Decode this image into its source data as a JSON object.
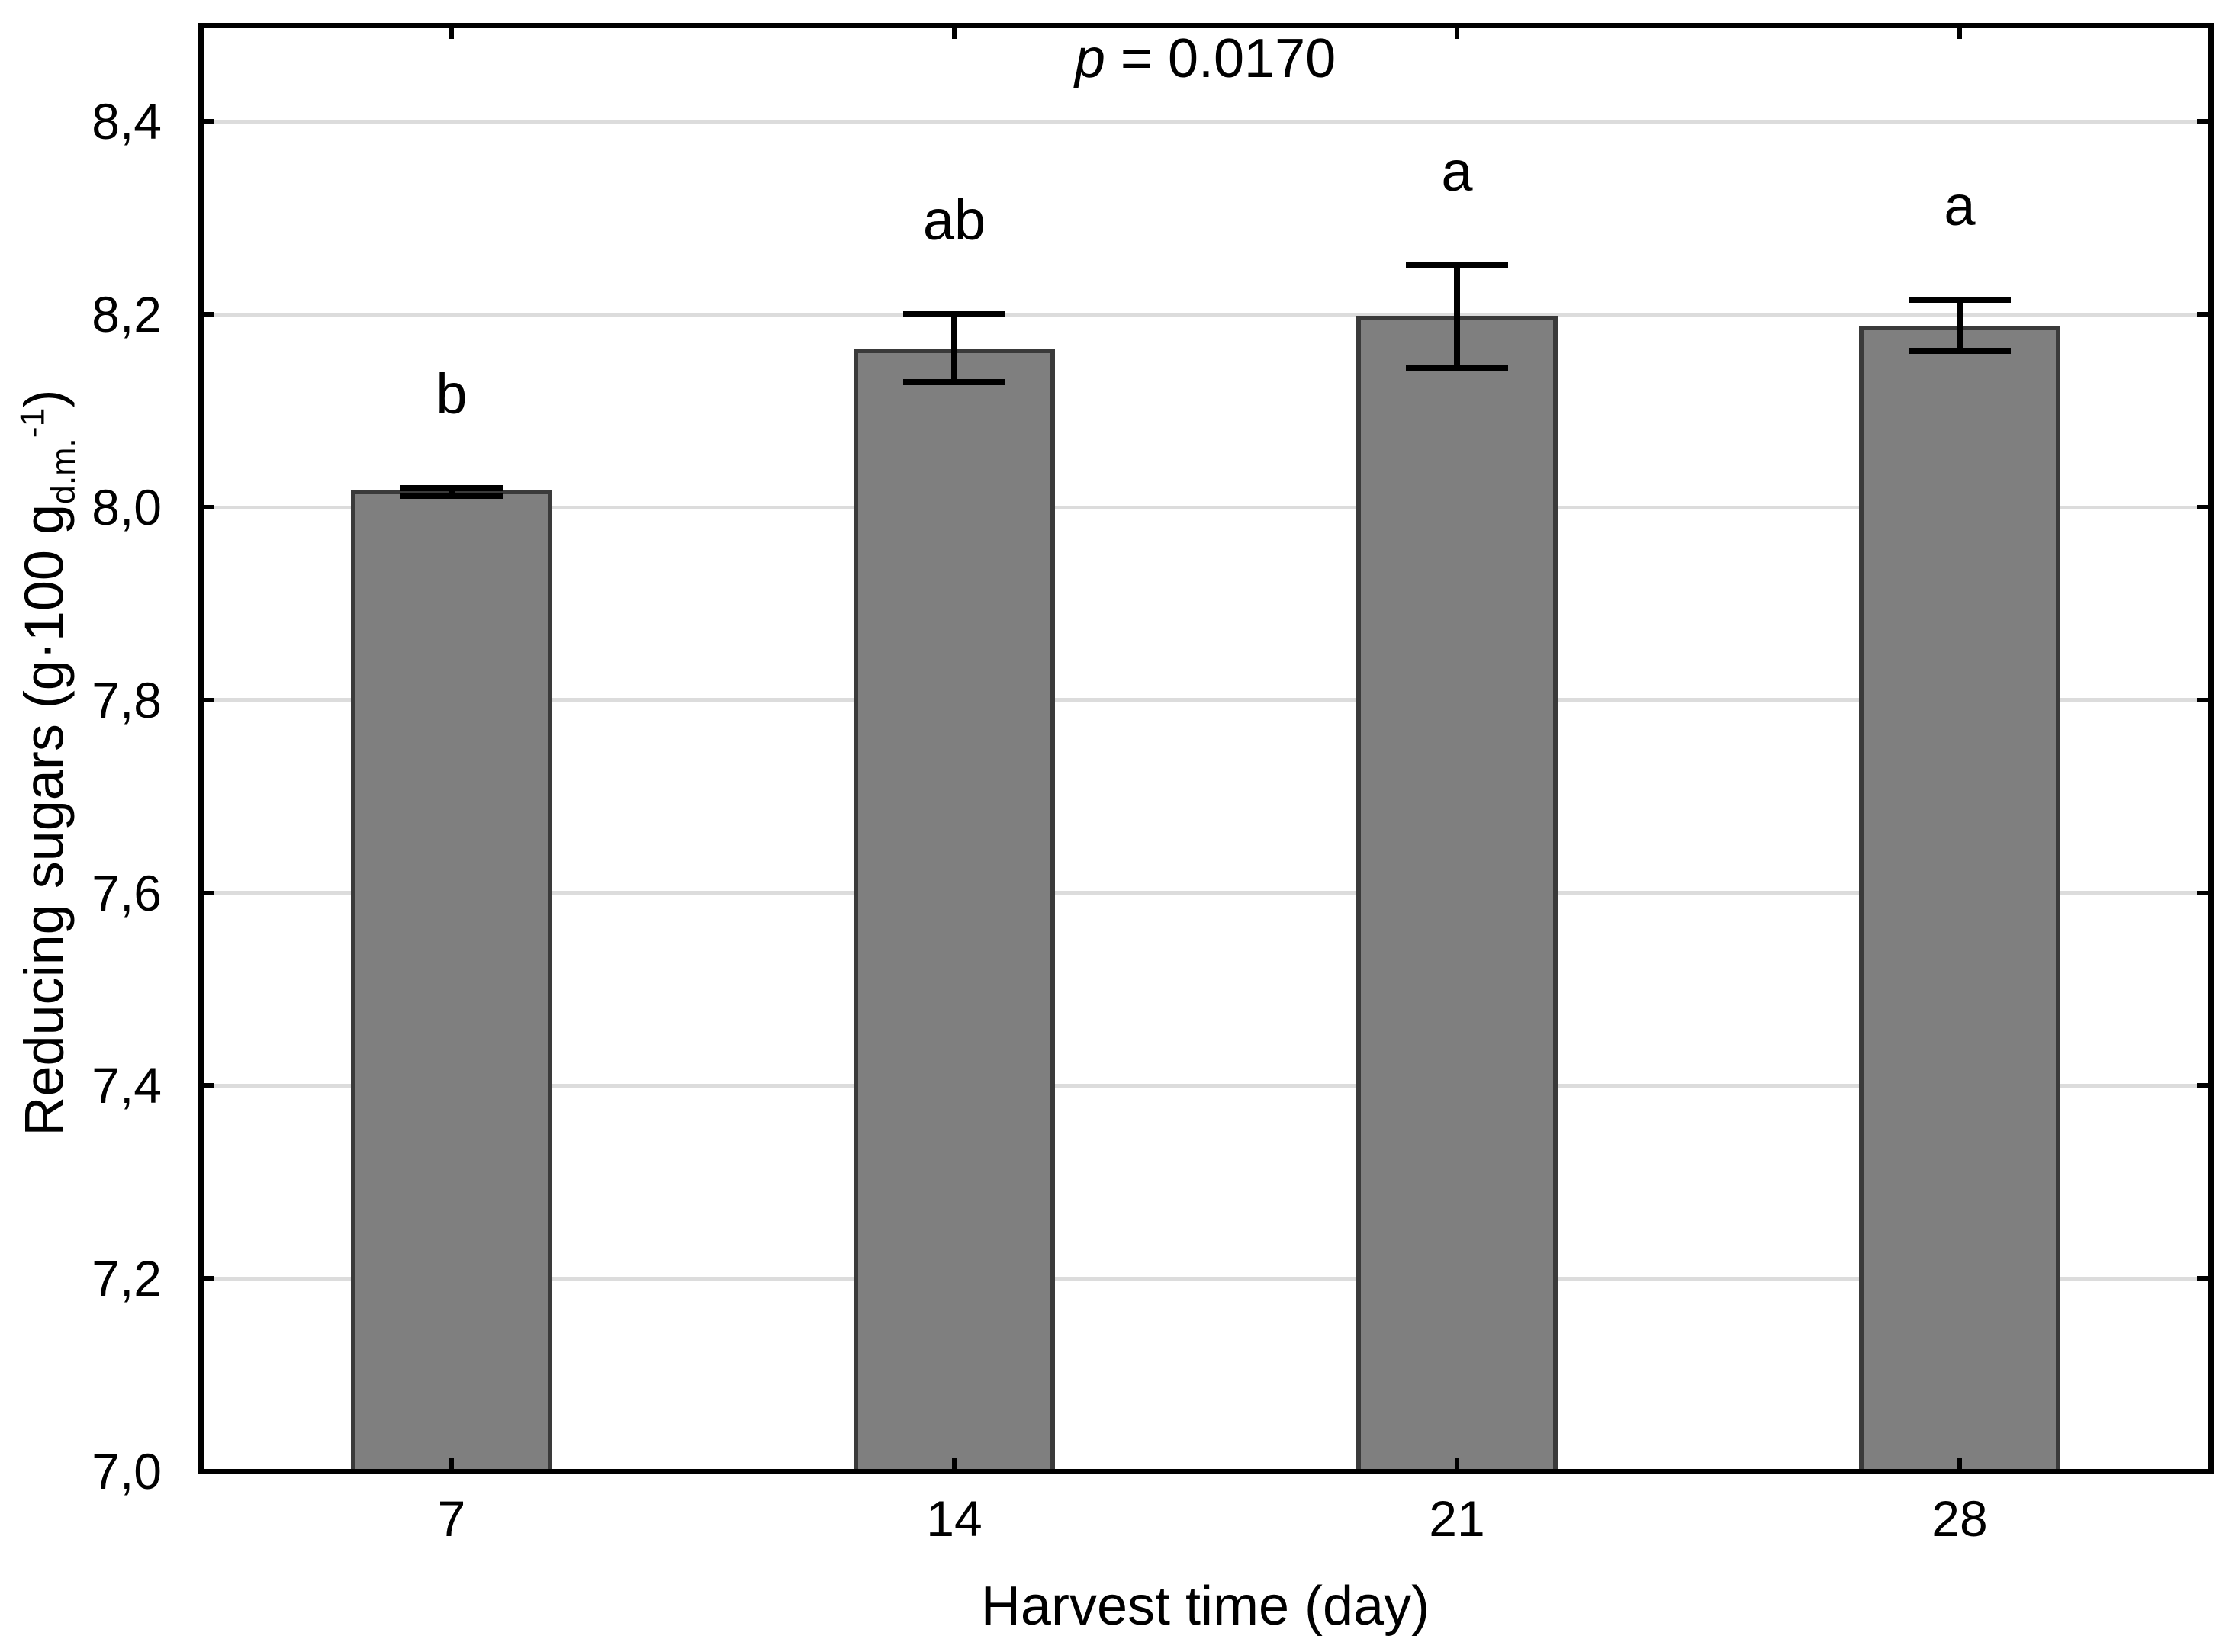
{
  "chart_data": {
    "type": "bar",
    "annotation_var": "p",
    "annotation_rest": " = 0.0170",
    "annotation_full": "p = 0.0170",
    "xlabel": "Harvest time (day)",
    "ylabel": "Reducing sugars (g·100 g_d.m.^-1)",
    "ylabel_parts": {
      "pre": "Reducing sugars (g·100 g",
      "sub": "d.m.",
      "sup": "-1",
      "post": ")"
    },
    "categories": [
      "7",
      "14",
      "21",
      "28"
    ],
    "values": [
      8.016,
      8.162,
      8.196,
      8.186
    ],
    "error_low": [
      8.012,
      8.13,
      8.145,
      8.162
    ],
    "error_high": [
      8.02,
      8.2,
      8.251,
      8.215
    ],
    "sig_letters": [
      "b",
      "ab",
      "a",
      "a"
    ],
    "ylim": [
      7.0,
      8.5
    ],
    "ytick_values": [
      7.0,
      7.2,
      7.4,
      7.6,
      7.8,
      8.0,
      8.2,
      8.4
    ],
    "ytick_labels": [
      "7,0",
      "7,2",
      "7,4",
      "7,6",
      "7,8",
      "8,0",
      "8,2",
      "8,4"
    ],
    "grid": true,
    "legend": null,
    "colors": {
      "bar_fill": "#7f7f7f",
      "bar_border": "#3a3a3a",
      "error_bar": "#000000",
      "gridline": "#dcdcdc",
      "axis": "#000000",
      "background": "#ffffff"
    }
  }
}
